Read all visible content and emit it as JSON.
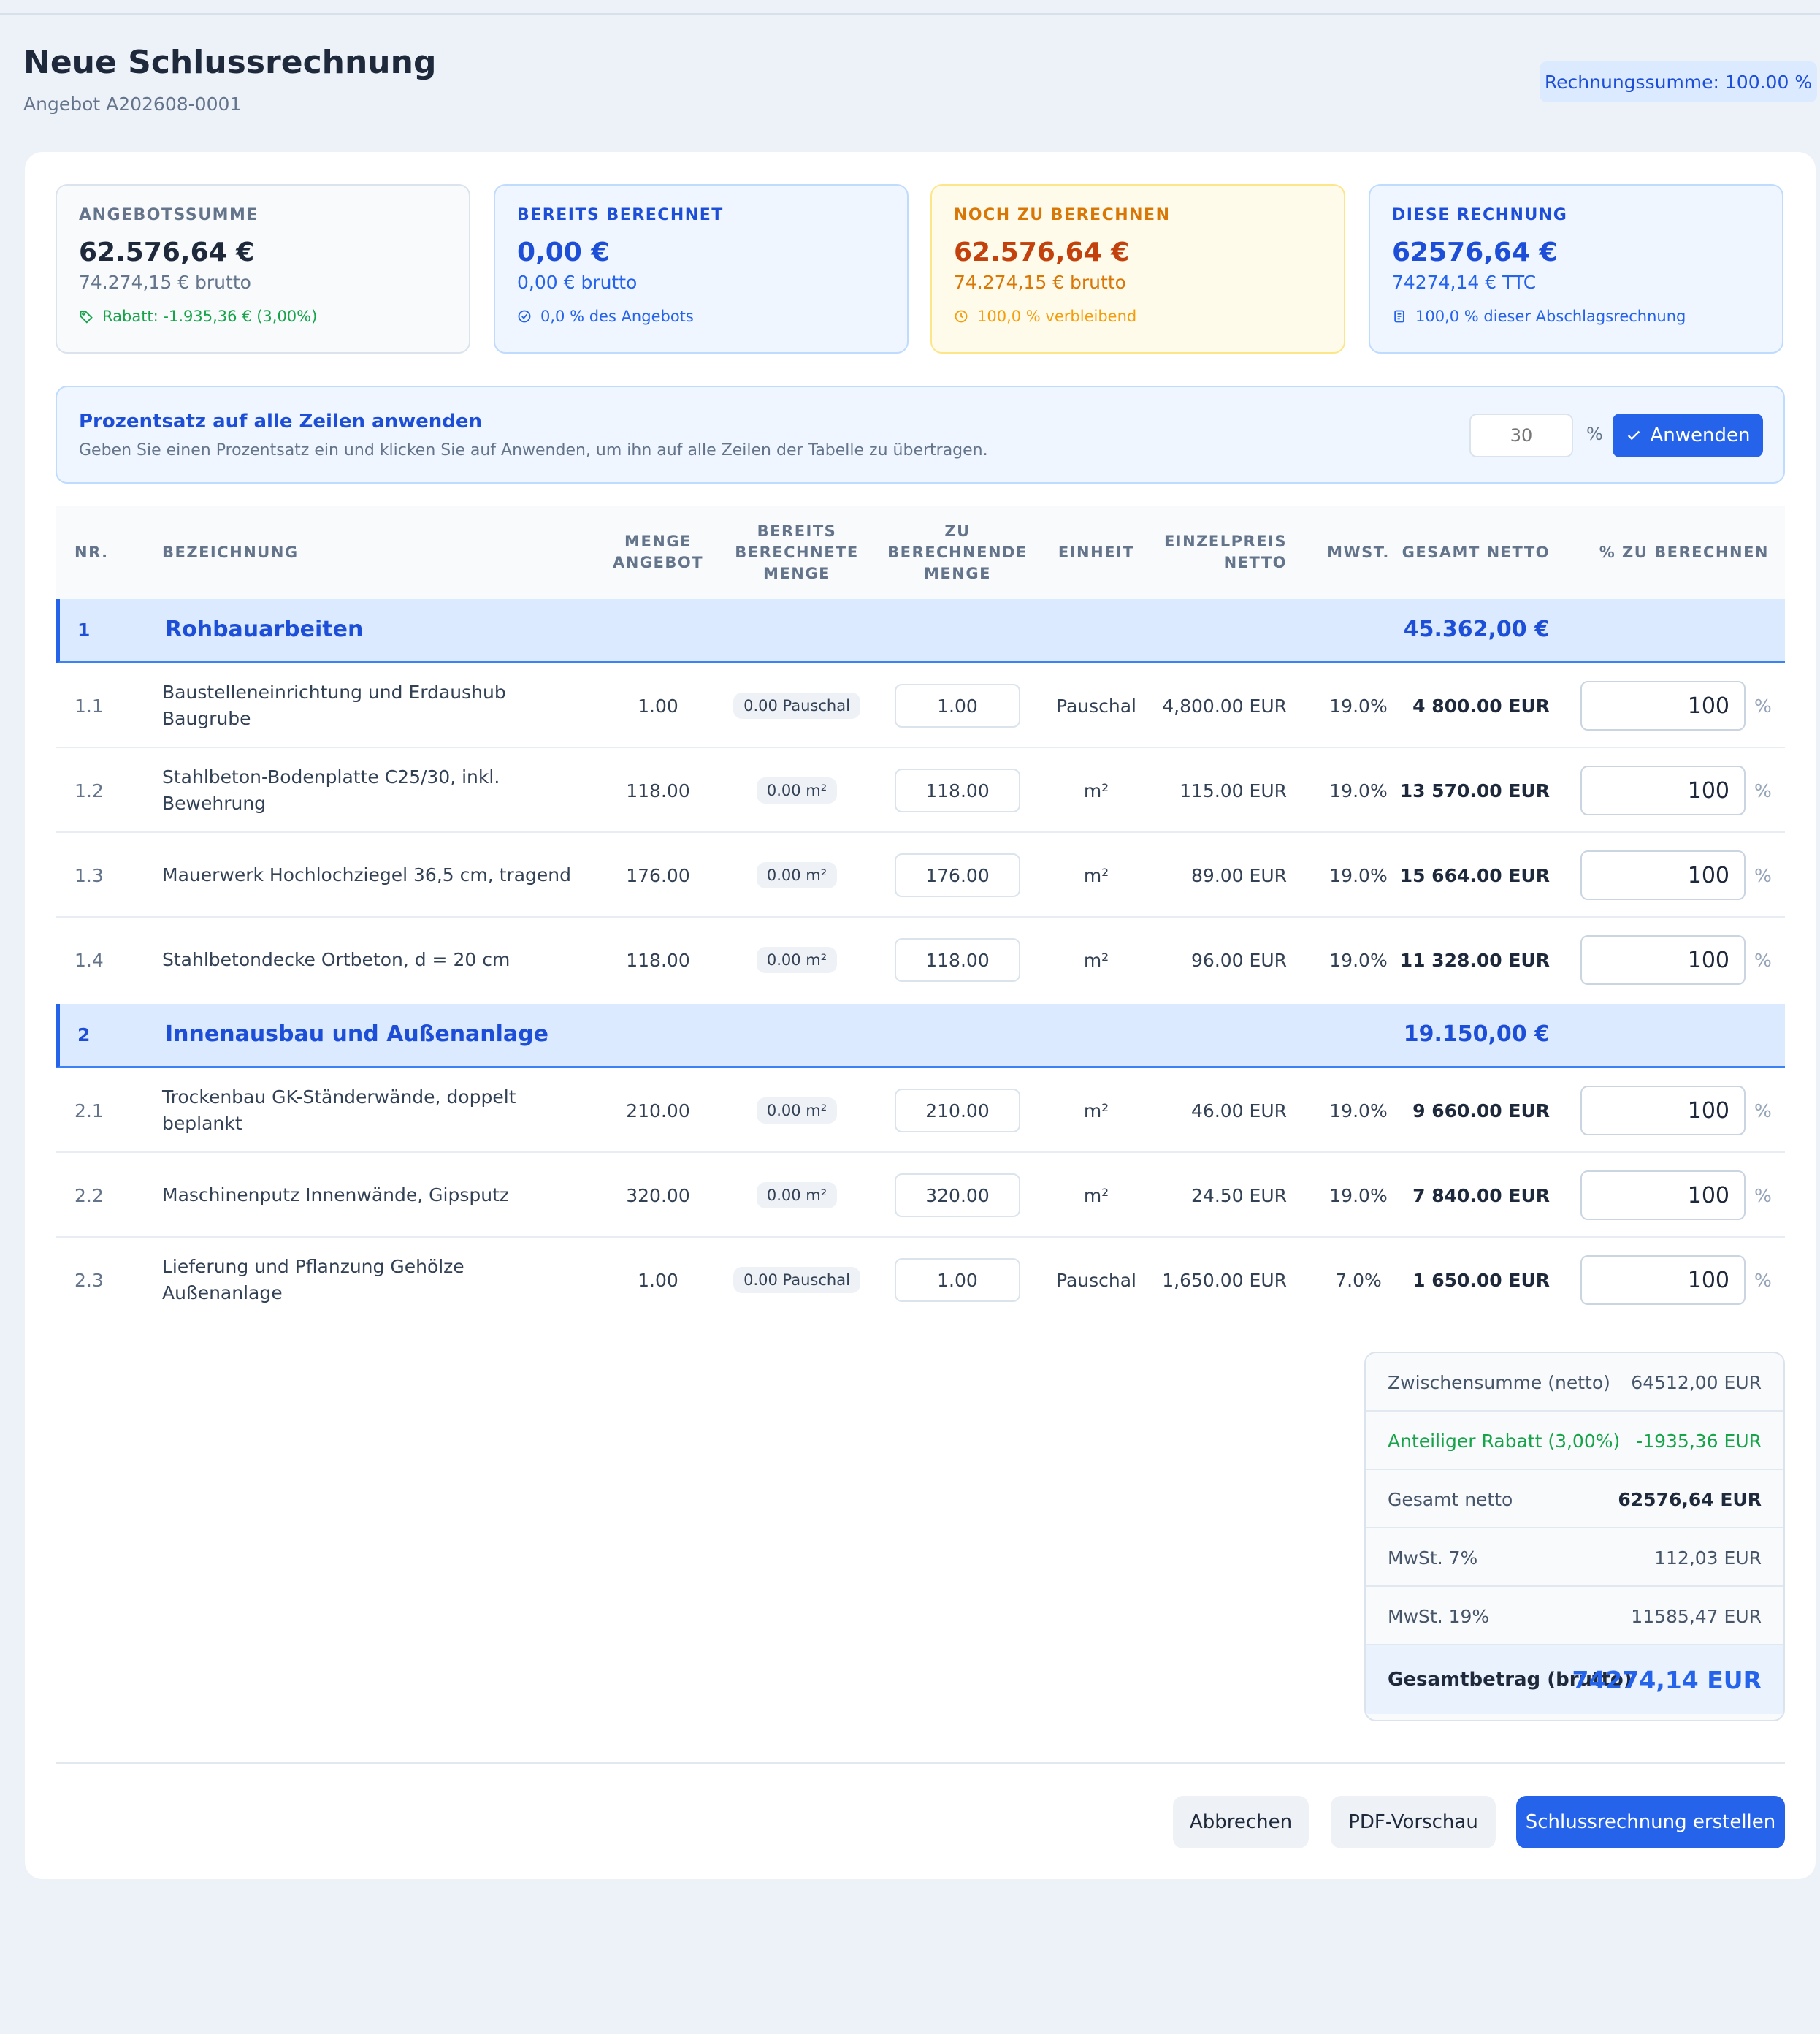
{
  "header": {
    "title": "Neue Schlussrechnung",
    "subtitle": "Angebot A202608-0001",
    "badge": "Rechnungssumme: 100.00 %"
  },
  "stats": [
    {
      "label": "Angebotssumme",
      "value": "62.576,64 €",
      "sub": "74.274,15 € brutto",
      "note": "Rabatt: -1.935,36 € (3,00%)",
      "icon": "tag-icon"
    },
    {
      "label": "Bereits berechnet",
      "value": "0,00 €",
      "sub": "0,00 € brutto",
      "note": "0,0 % des Angebots",
      "icon": "check-circle-icon"
    },
    {
      "label": "Noch zu berechnen",
      "value": "62.576,64 €",
      "sub": "74.274,15 € brutto",
      "note": "100,0 % verbleibend",
      "icon": "clock-icon"
    },
    {
      "label": "Diese Rechnung",
      "value": "62576,64 €",
      "sub": "74274,14 € TTC",
      "note": "100,0 % dieser Abschlagsrechnung",
      "icon": "document-icon"
    }
  ],
  "apply": {
    "title": "Prozentsatz auf alle Zeilen anwenden",
    "description": "Geben Sie einen Prozentsatz ein und klicken Sie auf Anwenden, um ihn auf alle Zeilen der Tabelle zu übertragen.",
    "placeholder": "30",
    "unit": "%",
    "button": "Anwenden"
  },
  "table": {
    "headers": {
      "nr": "Nr.",
      "bezeichnung": "Bezeichnung",
      "menge_angebot": "Menge\nAngebot",
      "bereits": "Bereits\nberechnete\nMenge",
      "zu": "Zu\nberechnende\nMenge",
      "einheit": "Einheit",
      "einzelpreis": "Einzelpreis\nnetto",
      "mwst": "MwSt.",
      "gesamt": "Gesamt netto",
      "pct": "% zu berechnen"
    },
    "groups": [
      {
        "nr": "1",
        "name": "Rohbauarbeiten",
        "total": "45.362,00 €"
      },
      {
        "nr": "2",
        "name": "Innenausbau und Außenanlage",
        "total": "19.150,00 €"
      }
    ],
    "rows": [
      {
        "nr": "1.1",
        "bez": "Baustelleneinrichtung und Erdaushub Baugrube",
        "menge": "1.00",
        "bereits": "0.00 Pauschal",
        "zu": "1.00",
        "einheit": "Pauschal",
        "preis": "4,800.00 EUR",
        "mwst": "19.0%",
        "gesamt": "4 800.00 EUR",
        "pct": "100",
        "sign": "%"
      },
      {
        "nr": "1.2",
        "bez": "Stahlbeton-Bodenplatte C25/30, inkl. Bewehrung",
        "menge": "118.00",
        "bereits": "0.00 m²",
        "zu": "118.00",
        "einheit": "m²",
        "preis": "115.00 EUR",
        "mwst": "19.0%",
        "gesamt": "13 570.00 EUR",
        "pct": "100",
        "sign": "%"
      },
      {
        "nr": "1.3",
        "bez": "Mauerwerk Hochlochziegel 36,5 cm, tragend",
        "menge": "176.00",
        "bereits": "0.00 m²",
        "zu": "176.00",
        "einheit": "m²",
        "preis": "89.00 EUR",
        "mwst": "19.0%",
        "gesamt": "15 664.00 EUR",
        "pct": "100",
        "sign": "%"
      },
      {
        "nr": "1.4",
        "bez": "Stahlbetondecke Ortbeton, d = 20 cm",
        "menge": "118.00",
        "bereits": "0.00 m²",
        "zu": "118.00",
        "einheit": "m²",
        "preis": "96.00 EUR",
        "mwst": "19.0%",
        "gesamt": "11 328.00 EUR",
        "pct": "100",
        "sign": "%"
      },
      {
        "nr": "2.1",
        "bez": "Trockenbau GK-Ständerwände, doppelt beplankt",
        "menge": "210.00",
        "bereits": "0.00 m²",
        "zu": "210.00",
        "einheit": "m²",
        "preis": "46.00 EUR",
        "mwst": "19.0%",
        "gesamt": "9 660.00 EUR",
        "pct": "100",
        "sign": "%"
      },
      {
        "nr": "2.2",
        "bez": "Maschinenputz Innenwände, Gipsputz",
        "menge": "320.00",
        "bereits": "0.00 m²",
        "zu": "320.00",
        "einheit": "m²",
        "preis": "24.50 EUR",
        "mwst": "19.0%",
        "gesamt": "7 840.00 EUR",
        "pct": "100",
        "sign": "%"
      },
      {
        "nr": "2.3",
        "bez": "Lieferung und Pflanzung Gehölze Außenanlage",
        "menge": "1.00",
        "bereits": "0.00 Pauschal",
        "zu": "1.00",
        "einheit": "Pauschal",
        "preis": "1,650.00 EUR",
        "mwst": "7.0%",
        "gesamt": "1 650.00 EUR",
        "pct": "100",
        "sign": "%"
      }
    ]
  },
  "totals": [
    {
      "label": "Zwischensumme (netto)",
      "value": "64512,00 EUR"
    },
    {
      "label": "Anteiliger Rabatt (3,00%)",
      "value": "-1935,36 EUR"
    },
    {
      "label": "Gesamt netto",
      "value": "62576,64 EUR"
    },
    {
      "label": "MwSt. 7%",
      "value": "112,03 EUR"
    },
    {
      "label": "MwSt. 19%",
      "value": "11585,47 EUR"
    },
    {
      "label": "Gesamtbetrag (brutto)",
      "value": "74274,14 EUR"
    }
  ],
  "footer": {
    "cancel": "Abbrechen",
    "pdf": "PDF-Vorschau",
    "create": "Schlussrechnung erstellen"
  },
  "colors": {
    "accent": "#2563eb",
    "success": "#16a34a",
    "warning": "#d97706"
  }
}
